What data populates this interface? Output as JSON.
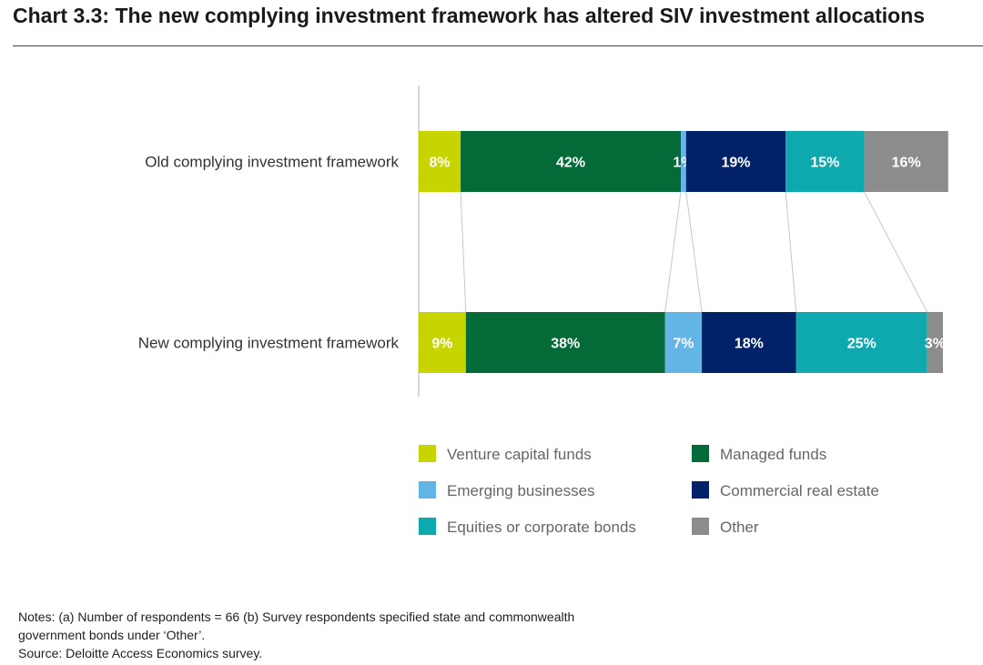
{
  "title": "Chart 3.3: The new complying investment framework has altered SIV investment allocations",
  "chart_data": {
    "type": "bar",
    "orientation": "horizontal",
    "stacked": true,
    "normalized": true,
    "categories": [
      "Old complying investment framework",
      "New complying investment framework"
    ],
    "series": [
      {
        "name": "Venture capital funds",
        "color": "#c8d400",
        "values": [
          8,
          9
        ]
      },
      {
        "name": "Managed funds",
        "color": "#046a38",
        "values": [
          42,
          38
        ]
      },
      {
        "name": "Emerging businesses",
        "color": "#62b5e5",
        "values": [
          1,
          7
        ]
      },
      {
        "name": "Commercial real estate",
        "color": "#012169",
        "values": [
          19,
          18
        ]
      },
      {
        "name": "Equities or corporate bonds",
        "color": "#0da9ae",
        "values": [
          15,
          25
        ]
      },
      {
        "name": "Other",
        "color": "#8c8c8c",
        "values": [
          16,
          3
        ]
      }
    ],
    "value_labels": [
      [
        "8%",
        "42%",
        "1%",
        "19%",
        "15%",
        "16%"
      ],
      [
        "9%",
        "38%",
        "7%",
        "18%",
        "25%",
        "3%"
      ]
    ],
    "xlim": [
      0,
      100
    ],
    "legend_position": "bottom"
  },
  "notes": {
    "line1": "Notes: (a) Number of respondents = 66 (b) Survey respondents specified state and commonwealth",
    "line2": "government bonds under ‘Other’.",
    "line3": "Source: Deloitte Access Economics survey."
  }
}
